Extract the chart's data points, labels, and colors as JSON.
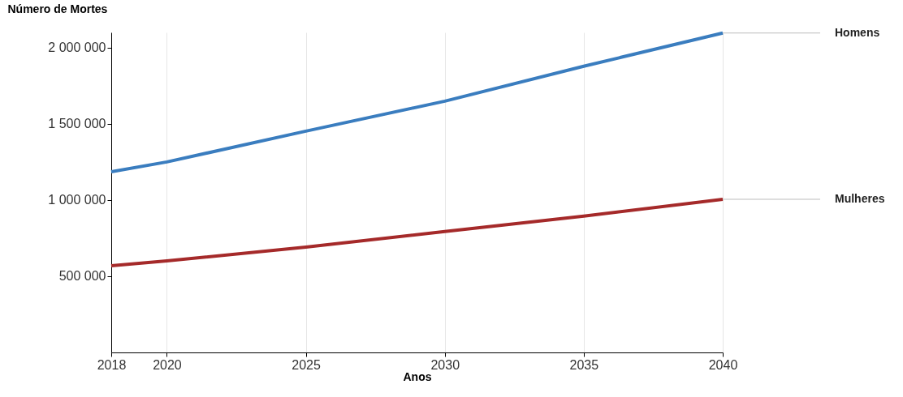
{
  "chart_data": {
    "type": "line",
    "xlabel": "Anos",
    "ylabel": "Número de Mortes",
    "x": [
      2018,
      2020,
      2025,
      2030,
      2035,
      2040
    ],
    "series": [
      {
        "name": "Homens",
        "color": "#3a7dbf",
        "values": [
          1186000,
          1250000,
          1452000,
          1649000,
          1878000,
          2096000
        ]
      },
      {
        "name": "Mulheres",
        "color": "#a52a2a",
        "values": [
          569000,
          601000,
          691000,
          793000,
          894000,
          1005000
        ]
      }
    ],
    "xlim": [
      2018,
      2040
    ],
    "xticks": [
      2018,
      2020,
      2025,
      2030,
      2035,
      2040
    ],
    "ylim": [
      0,
      2100000
    ],
    "yticks": [
      {
        "value": 500000,
        "label": "500 000"
      },
      {
        "value": 1000000,
        "label": "1 000 000"
      },
      {
        "value": 1500000,
        "label": "1 500 000"
      },
      {
        "value": 2000000,
        "label": "2 000 000"
      }
    ],
    "grid": "x",
    "line_style": "solid",
    "marker": "none"
  }
}
